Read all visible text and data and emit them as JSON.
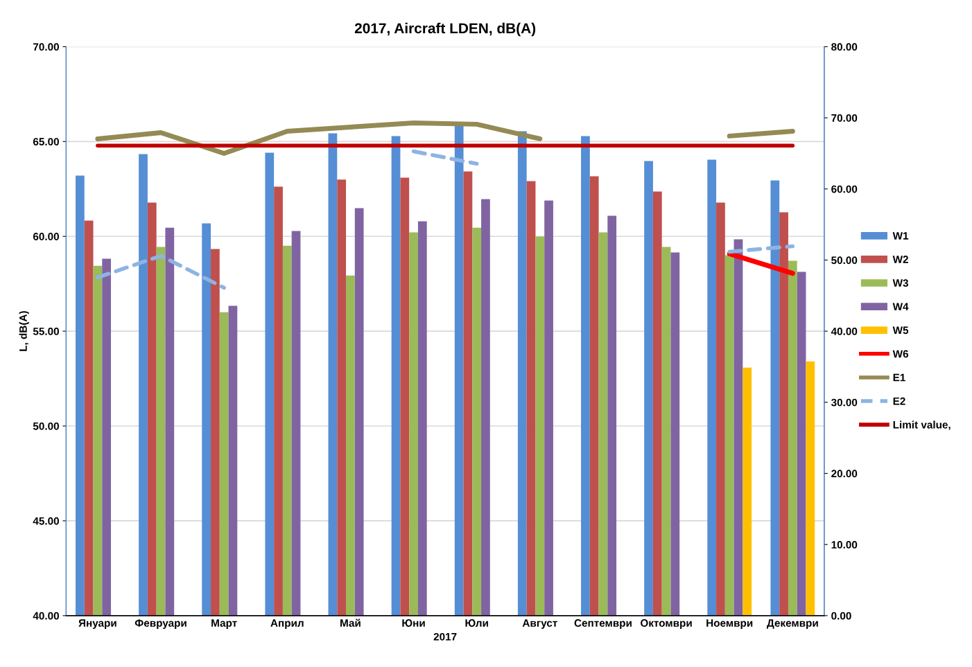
{
  "chart_data": {
    "type": "bar",
    "title": "2017, Aircraft LDEN, dB(A)",
    "xlabel": "2017",
    "ylabel": "L, dB(A)",
    "categories": [
      "Януари",
      "Февруари",
      "Март",
      "Април",
      "Май",
      "Юни",
      "Юли",
      "Август",
      "Септември",
      "Октомври",
      "Ноември",
      "Декември"
    ],
    "series": [
      {
        "name": "W1",
        "color": "#558ed5",
        "values": [
          63.2,
          64.34,
          60.68,
          64.41,
          65.43,
          65.29,
          65.9,
          65.54,
          65.29,
          63.97,
          64.04,
          62.95
        ]
      },
      {
        "name": "W2",
        "color": "#c0504d",
        "values": [
          60.83,
          61.78,
          59.33,
          62.62,
          62.99,
          63.09,
          63.42,
          62.91,
          63.17,
          62.36,
          61.78,
          61.27
        ]
      },
      {
        "name": "W3",
        "color": "#9bbb59",
        "values": [
          58.45,
          59.44,
          56.0,
          59.51,
          57.94,
          60.21,
          60.46,
          59.99,
          60.21,
          59.44,
          59.0,
          58.71
        ]
      },
      {
        "name": "W4",
        "color": "#8064a2",
        "values": [
          58.82,
          60.46,
          56.34,
          60.28,
          61.49,
          60.79,
          61.96,
          61.89,
          61.09,
          59.15,
          59.84,
          58.13
        ]
      },
      {
        "name": "W5",
        "color": "#ffc000",
        "values": [
          null,
          null,
          null,
          null,
          null,
          null,
          null,
          null,
          null,
          null,
          53.08,
          53.41
        ]
      },
      {
        "name": "W6",
        "type": "line",
        "color": "#ff0000",
        "line_style": "solid",
        "values": [
          null,
          null,
          null,
          null,
          null,
          null,
          null,
          null,
          null,
          null,
          59.08,
          58.05
        ]
      },
      {
        "name": "E1",
        "type": "line",
        "color": "#948a54",
        "line_style": "solid",
        "values": [
          65.14,
          65.47,
          64.37,
          65.54,
          65.76,
          65.98,
          65.91,
          65.14,
          null,
          null,
          65.29,
          65.54
        ]
      },
      {
        "name": "E2",
        "type": "line",
        "color": "#8db4e2",
        "line_style": "dashed",
        "values": [
          57.83,
          58.97,
          57.29,
          null,
          null,
          64.48,
          63.83,
          null,
          null,
          null,
          59.19,
          59.48
        ]
      },
      {
        "name": "Limit value,",
        "type": "line",
        "color": "#c00000",
        "line_style": "solid",
        "values": [
          64.78,
          64.78,
          64.78,
          64.78,
          64.78,
          64.78,
          64.78,
          64.78,
          64.78,
          64.78,
          64.78,
          64.78
        ]
      }
    ],
    "ylim": [
      40,
      70
    ],
    "yticks": [
      {
        "value": 40,
        "label": "40.00"
      },
      {
        "value": 45,
        "label": "45.00"
      },
      {
        "value": 50,
        "label": "50.00"
      },
      {
        "value": 55,
        "label": "55.00"
      },
      {
        "value": 60,
        "label": "60.00"
      },
      {
        "value": 65,
        "label": "65.00"
      },
      {
        "value": 70,
        "label": "70.00"
      }
    ],
    "y2lim": [
      0,
      80
    ],
    "y2ticks": [
      {
        "value": 0,
        "label": "0.00"
      },
      {
        "value": 10,
        "label": "10.00"
      },
      {
        "value": 20,
        "label": "20.00"
      },
      {
        "value": 30,
        "label": "30.00"
      },
      {
        "value": 40,
        "label": "40.00"
      },
      {
        "value": 50,
        "label": "50.00"
      },
      {
        "value": 60,
        "label": "60.00"
      },
      {
        "value": 70,
        "label": "70.00"
      },
      {
        "value": 80,
        "label": "80.00"
      }
    ],
    "grid": "y",
    "legend": "right",
    "marker": "none"
  }
}
